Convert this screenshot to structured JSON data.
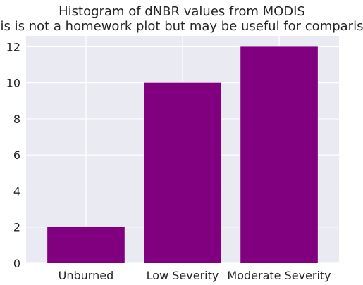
{
  "chart_data": {
    "type": "bar",
    "title": "Histogram of dNBR values from MODIS",
    "subtitle": "This is not a homework plot but may  be useful for comparison",
    "xlabel": "",
    "ylabel": "",
    "categories": [
      "Unburned",
      "Low Severity",
      "Moderate Severity"
    ],
    "values": [
      2,
      10,
      12
    ],
    "ylim": [
      0,
      12.6
    ],
    "yticks": [
      "0",
      "2",
      "4",
      "6",
      "8",
      "10",
      "12"
    ],
    "grid": true,
    "bar_color": "#800080",
    "background_color": "#eaeaf2",
    "grid_color": "#ffffff"
  }
}
